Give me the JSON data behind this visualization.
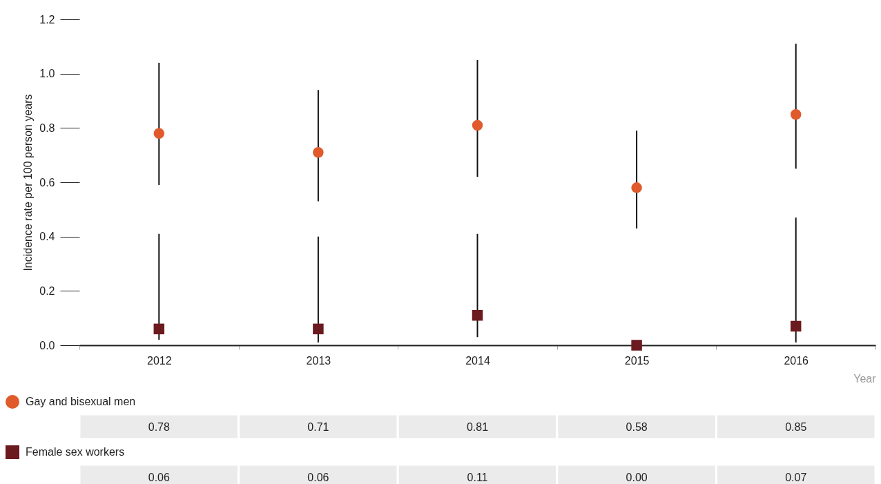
{
  "chart_data": {
    "type": "scatter",
    "ylabel": "Incidence rate per 100 person years",
    "xlabel": "Year",
    "categories": [
      "2012",
      "2013",
      "2014",
      "2015",
      "2016"
    ],
    "ylim": [
      0,
      1.2
    ],
    "yticks": [
      {
        "value": 0,
        "label": "0.0"
      },
      0.2,
      0.4,
      0.6,
      0.8,
      {
        "value": 1,
        "label": "1.0"
      },
      1.2
    ],
    "grid": false,
    "legend": "bottom",
    "series": [
      {
        "name": "Gay and bisexual men",
        "color": "#e05a2b",
        "marker": "circle",
        "values": [
          0.78,
          0.71,
          0.81,
          0.58,
          0.85
        ],
        "errors": [
          [
            0.59,
            1.04
          ],
          [
            0.53,
            0.94
          ],
          [
            0.62,
            1.05
          ],
          [
            0.43,
            0.79
          ],
          [
            0.65,
            1.11
          ]
        ],
        "value_labels": [
          "0.78",
          "0.71",
          "0.81",
          "0.58",
          "0.85"
        ]
      },
      {
        "name": "Female sex workers",
        "color": "#6b1a1f",
        "marker": "square",
        "values": [
          0.06,
          0.06,
          0.11,
          0,
          0.07
        ],
        "errors": [
          [
            0.02,
            0.41
          ],
          [
            0.01,
            0.4
          ],
          [
            0.03,
            0.41
          ],
          null,
          [
            0.01,
            0.47
          ]
        ],
        "value_labels": [
          "0.06",
          "0.06",
          "0.11",
          "0.00",
          "0.07"
        ]
      }
    ]
  }
}
